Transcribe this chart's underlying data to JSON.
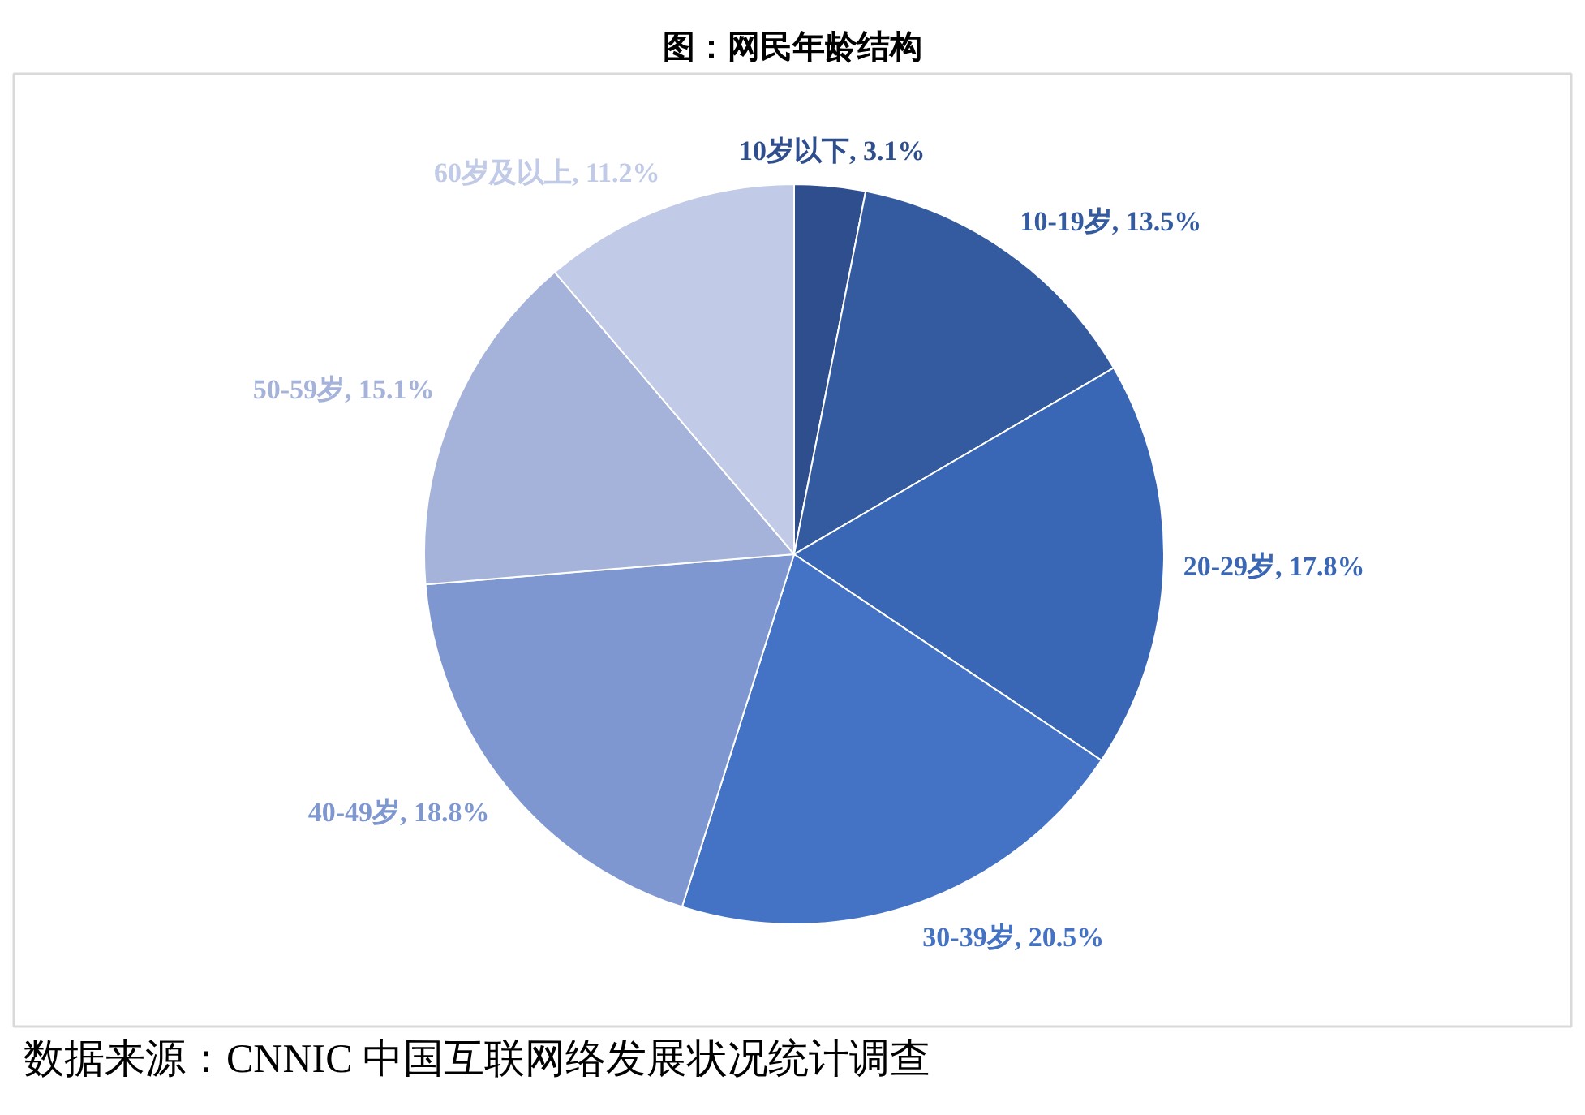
{
  "chart_data": {
    "type": "pie",
    "title": "图：网民年龄结构",
    "categories": [
      "10岁以下",
      "10-19岁",
      "20-29岁",
      "30-39岁",
      "40-49岁",
      "50-59岁",
      "60岁及以上"
    ],
    "values": [
      3.1,
      13.5,
      17.8,
      20.5,
      18.8,
      15.1,
      11.2
    ],
    "colors": [
      "#2f4e8e",
      "#345a9f",
      "#3a67b5",
      "#4472c4",
      "#7f97d1",
      "#a5b3da",
      "#c1cae6"
    ],
    "value_labels": [
      "3.1%",
      "13.5%",
      "17.8%",
      "20.5%",
      "18.8%",
      "15.1%",
      "11.2%"
    ],
    "annotations": [
      "数据来源：CNNIC 中国互联网络发展状况统计调查"
    ]
  }
}
